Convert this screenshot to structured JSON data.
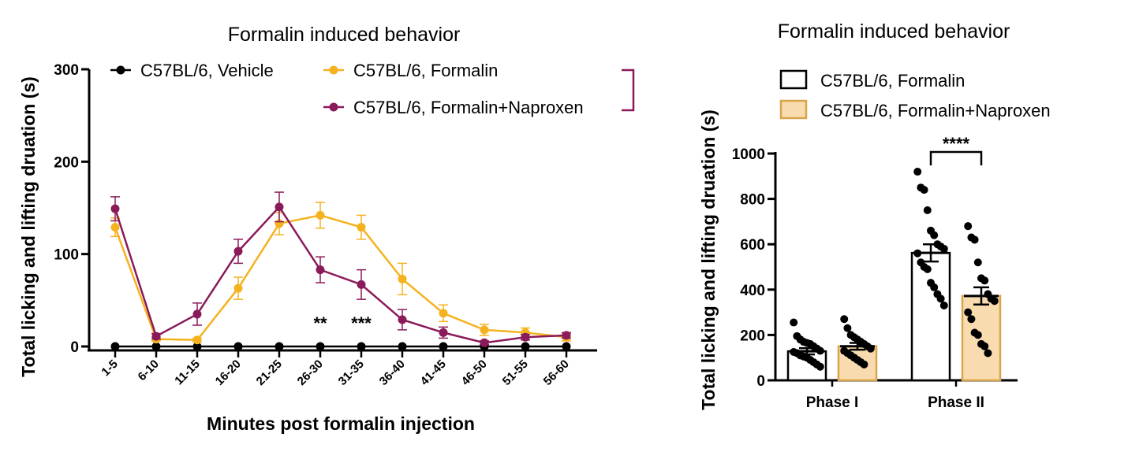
{
  "chart_data": [
    {
      "type": "line",
      "title": "Formalin induced behavior",
      "xlabel": "Minutes post formalin injection",
      "ylabel": "Total licking and lifting druation (s)",
      "categories": [
        "1-5",
        "6-10",
        "11-15",
        "16-20",
        "21-25",
        "26-30",
        "31-35",
        "36-40",
        "41-45",
        "46-50",
        "51-55",
        "56-60"
      ],
      "ylim": [
        0,
        300
      ],
      "yticks": [
        "0",
        "100",
        "200",
        "300"
      ],
      "series": [
        {
          "name": "C57BL/6, Vehicle",
          "color": "#000000",
          "values": [
            0,
            0,
            0,
            0,
            0,
            0,
            0,
            0,
            0,
            0,
            0,
            0
          ],
          "errors": [
            0,
            0,
            0,
            0,
            0,
            0,
            0,
            0,
            0,
            0,
            0,
            0
          ]
        },
        {
          "name": "C57BL/6, Formalin",
          "color": "#f5b21f",
          "values": [
            129,
            8,
            7,
            63,
            133,
            142,
            129,
            73,
            36,
            18,
            15,
            10
          ],
          "errors": [
            10,
            2,
            2,
            12,
            12,
            14,
            13,
            17,
            9,
            6,
            5,
            4
          ]
        },
        {
          "name": "C57BL/6, Formalin+Naproxen",
          "color": "#8b1a5a",
          "values": [
            149,
            11,
            35,
            103,
            151,
            83,
            67,
            29,
            15,
            4,
            10,
            12
          ],
          "errors": [
            13,
            3,
            12,
            13,
            16,
            14,
            16,
            11,
            6,
            2,
            3,
            3
          ]
        }
      ],
      "legend_bracket_color": "#8b1a5a",
      "annotations": [
        {
          "text": "**",
          "category": "26-30"
        },
        {
          "text": "***",
          "category": "31-35"
        }
      ],
      "legend_placement": "top"
    },
    {
      "type": "bar",
      "title": "Formalin induced behavior",
      "xlabel": "",
      "ylabel": "Total licking and lifting druation (s)",
      "categories": [
        "Phase I",
        "Phase II"
      ],
      "ylim": [
        0,
        1000
      ],
      "yticks": [
        "0",
        "200",
        "400",
        "600",
        "800",
        "1000"
      ],
      "series": [
        {
          "name": "C57BL/6, Formalin",
          "fill": "#ffffff",
          "edge": "#000000",
          "values": [
            128,
            562
          ],
          "errors": [
            14,
            38
          ],
          "points": [
            [
              255,
              195,
              180,
              170,
              165,
              160,
              150,
              140,
              130,
              125,
              120,
              110,
              105,
              100,
              90,
              80,
              70,
              60
            ],
            [
              920,
              850,
              840,
              750,
              660,
              640,
              600,
              590,
              580,
              560,
              520,
              500,
              490,
              430,
              410,
              380,
              360,
              330
            ]
          ]
        },
        {
          "name": "C57BL/6, Formalin+Naproxen",
          "fill": "#f8dcb0",
          "edge": "#d9a54a",
          "values": [
            150,
            372
          ],
          "errors": [
            15,
            38
          ],
          "points": [
            [
              270,
              230,
              200,
              190,
              180,
              170,
              160,
              150,
              140,
              130,
              120,
              110,
              100,
              90,
              80,
              70
            ],
            [
              680,
              630,
              620,
              520,
              450,
              440,
              380,
              360,
              350,
              300,
              270,
              210,
              200,
              160,
              150,
              120
            ]
          ]
        }
      ],
      "annotations": [
        {
          "text": "****",
          "category": "Phase II"
        }
      ],
      "legend_placement": "top"
    }
  ]
}
